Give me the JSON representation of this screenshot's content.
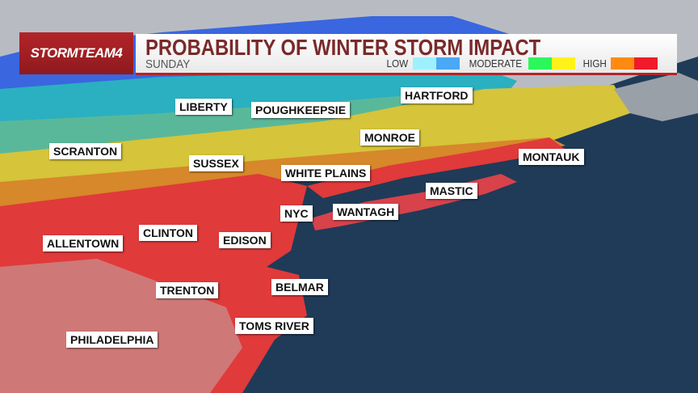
{
  "header": {
    "brand": "STORMTEAM4",
    "title": "PROBABILITY OF WINTER STORM IMPACT",
    "day": "SUNDAY"
  },
  "legend": {
    "low_label": "LOW",
    "moderate_label": "MODERATE",
    "high_label": "HIGH",
    "colors": {
      "low": [
        "#9ef0ff",
        "#4aa8f5"
      ],
      "moderate": [
        "#2cf75a",
        "#fff21a"
      ],
      "high": [
        "#ff8a10",
        "#f01a2a"
      ]
    }
  },
  "cities": [
    {
      "name": "LIBERTY"
    },
    {
      "name": "POUGHKEEPSIE"
    },
    {
      "name": "HARTFORD"
    },
    {
      "name": "SCRANTON"
    },
    {
      "name": "MONROE"
    },
    {
      "name": "MONTAUK"
    },
    {
      "name": "SUSSEX"
    },
    {
      "name": "WHITE PLAINS"
    },
    {
      "name": "MASTIC"
    },
    {
      "name": "NYC"
    },
    {
      "name": "WANTAGH"
    },
    {
      "name": "ALLENTOWN"
    },
    {
      "name": "CLINTON"
    },
    {
      "name": "EDISON"
    },
    {
      "name": "BELMAR"
    },
    {
      "name": "TRENTON"
    },
    {
      "name": "TOMS RIVER"
    },
    {
      "name": "PHILADELPHIA"
    }
  ]
}
